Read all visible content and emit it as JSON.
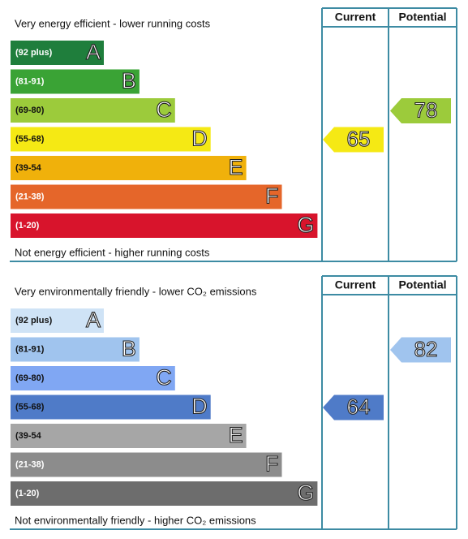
{
  "panels": [
    {
      "top_text": "Very energy efficient - lower running costs",
      "bottom_text": "Not energy efficient - higher running costs",
      "current_header": "Current",
      "potential_header": "Potential",
      "bands": [
        {
          "range": "(92 plus)",
          "letter": "A",
          "color": "#1f7e3c",
          "text_color": "#fff"
        },
        {
          "range": "(81-91)",
          "letter": "B",
          "color": "#3aa335",
          "text_color": "#fff"
        },
        {
          "range": "(69-80)",
          "letter": "C",
          "color": "#9ccb3b",
          "text_color": "#111"
        },
        {
          "range": "(55-68)",
          "letter": "D",
          "color": "#f5e914",
          "text_color": "#111"
        },
        {
          "range": "(39-54",
          "letter": "E",
          "color": "#f0b10b",
          "text_color": "#111"
        },
        {
          "range": "(21-38)",
          "letter": "F",
          "color": "#e5662a",
          "text_color": "#fff"
        },
        {
          "range": "(1-20)",
          "letter": "G",
          "color": "#d8142c",
          "text_color": "#fff"
        }
      ],
      "current": 65,
      "potential": 78
    },
    {
      "top_text": "Very environmentally friendly - lower CO₂ emissions",
      "bottom_text": "Not environmentally friendly - higher CO₂ emissions",
      "current_header": "Current",
      "potential_header": "Potential",
      "bands": [
        {
          "range": "(92 plus)",
          "letter": "A",
          "color": "#cfe3f6",
          "text_color": "#111"
        },
        {
          "range": "(81-91)",
          "letter": "B",
          "color": "#a0c4ee",
          "text_color": "#111"
        },
        {
          "range": "(69-80)",
          "letter": "C",
          "color": "#80a7f3",
          "text_color": "#111"
        },
        {
          "range": "(55-68)",
          "letter": "D",
          "color": "#4f7bc8",
          "text_color": "#111"
        },
        {
          "range": "(39-54",
          "letter": "E",
          "color": "#a6a6a6",
          "text_color": "#111"
        },
        {
          "range": "(21-38)",
          "letter": "F",
          "color": "#8c8c8c",
          "text_color": "#fff"
        },
        {
          "range": "(1-20)",
          "letter": "G",
          "color": "#6d6d6d",
          "text_color": "#fff"
        }
      ],
      "current": 64,
      "potential": 82
    }
  ]
}
